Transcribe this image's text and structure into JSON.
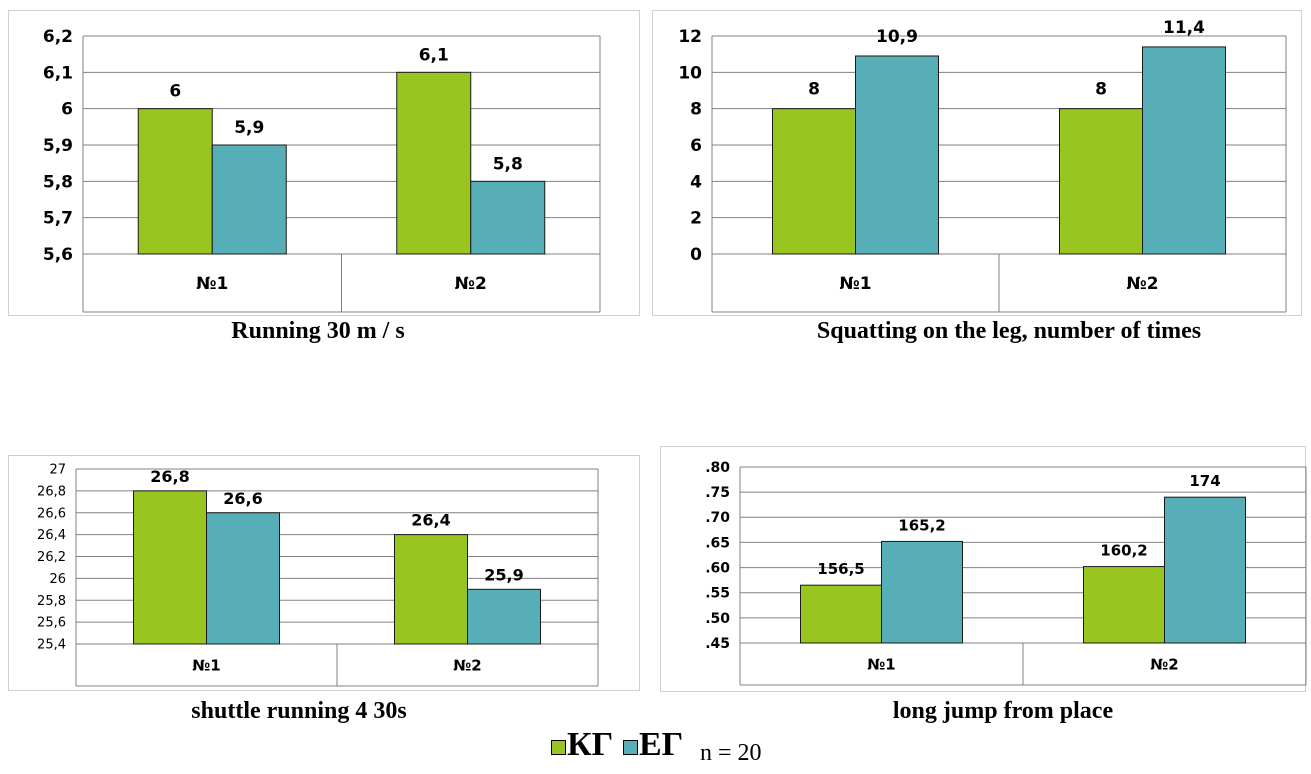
{
  "colors": {
    "kg": "#99c520",
    "eg": "#58aeb7",
    "grid": "#808080"
  },
  "chart_data": [
    {
      "type": "bar",
      "title": "Running 30 m / s",
      "categories": [
        "№1",
        "№2"
      ],
      "series": [
        {
          "name": "КГ",
          "values": [
            6,
            6.1
          ],
          "labels": [
            "6",
            "6,1"
          ]
        },
        {
          "name": "ЕГ",
          "values": [
            5.9,
            5.8
          ],
          "labels": [
            "5,9",
            "5,8"
          ]
        }
      ],
      "ylim": [
        5.6,
        6.2
      ],
      "yticks": [
        "5,6",
        "5,7",
        "5,8",
        "5,9",
        "6",
        "6,1",
        "6,2"
      ],
      "grid": true
    },
    {
      "type": "bar",
      "title": "Squatting on the leg, number of times",
      "categories": [
        "№1",
        "№2"
      ],
      "series": [
        {
          "name": "КГ",
          "values": [
            8,
            8
          ],
          "labels": [
            "8",
            "8"
          ]
        },
        {
          "name": "ЕГ",
          "values": [
            10.9,
            11.4
          ],
          "labels": [
            "10,9",
            "11,4"
          ]
        }
      ],
      "ylim": [
        0,
        12
      ],
      "yticks": [
        "0",
        "2",
        "4",
        "6",
        "8",
        "10",
        "12"
      ],
      "grid": true
    },
    {
      "type": "bar",
      "title": "shuttle running 4 30s",
      "categories": [
        "№1",
        "№2"
      ],
      "series": [
        {
          "name": "КГ",
          "values": [
            26.8,
            26.4
          ],
          "labels": [
            "26,8",
            "26,4"
          ]
        },
        {
          "name": "ЕГ",
          "values": [
            26.6,
            25.9
          ],
          "labels": [
            "26,6",
            "25,9"
          ]
        }
      ],
      "ylim": [
        25.4,
        27
      ],
      "yticks": [
        "25,4",
        "25,6",
        "25,8",
        "26",
        "26,2",
        "26,4",
        "26,6",
        "26,8",
        "27"
      ],
      "grid": true
    },
    {
      "type": "bar",
      "title": "long jump from place",
      "categories": [
        "№1",
        "№2"
      ],
      "series": [
        {
          "name": "КГ",
          "values": [
            156.5,
            160.2
          ],
          "labels": [
            "156,5",
            "160,2"
          ]
        },
        {
          "name": "ЕГ",
          "values": [
            165.2,
            174
          ],
          "labels": [
            "165,2",
            "174"
          ]
        }
      ],
      "ylim": [
        145,
        180
      ],
      "yticks": [
        ".45",
        ".50",
        ".55",
        ".60",
        ".65",
        ".70",
        ".75",
        ".80"
      ],
      "grid": true
    }
  ],
  "legend": {
    "kg_label": "КГ",
    "eg_label": "ЕГ",
    "note": "n = 20"
  }
}
